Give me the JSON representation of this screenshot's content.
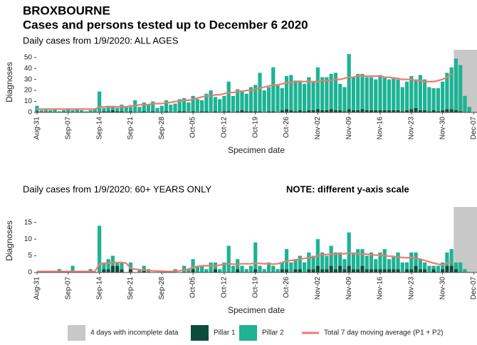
{
  "header": {
    "title": "BROXBOURNE",
    "subtitle": "Cases and persons tested up to December  6 2020"
  },
  "chart_data": [
    {
      "type": "bar",
      "title": "Daily cases from 1/9/2020: ALL AGES",
      "xlabel": "Specimen date",
      "ylabel": "Diagnoses",
      "stacked": true,
      "incomplete_days": 4,
      "shade_label": "4 days with incomplete data",
      "shade_color": "#c8c8c8",
      "categories": [
        "Aug-31",
        null,
        null,
        null,
        null,
        null,
        null,
        "Sep-07",
        null,
        null,
        null,
        null,
        null,
        null,
        "Sep-14",
        null,
        null,
        null,
        null,
        null,
        null,
        "Sep-21",
        null,
        null,
        null,
        null,
        null,
        null,
        "Sep-28",
        null,
        null,
        null,
        null,
        null,
        null,
        "Oct-05",
        null,
        null,
        null,
        null,
        null,
        null,
        "Oct-12",
        null,
        null,
        null,
        null,
        null,
        null,
        "Oct-19",
        null,
        null,
        null,
        null,
        null,
        null,
        "Oct-26",
        null,
        null,
        null,
        null,
        null,
        null,
        "Nov-02",
        null,
        null,
        null,
        null,
        null,
        null,
        "Nov-09",
        null,
        null,
        null,
        null,
        null,
        null,
        "Nov-16",
        null,
        null,
        null,
        null,
        null,
        null,
        "Nov-23",
        null,
        null,
        null,
        null,
        null,
        null,
        "Nov-30",
        null,
        null,
        null,
        null,
        null,
        null,
        "Dec-07"
      ],
      "ylim": [
        0,
        55
      ],
      "yticks": [
        0,
        10,
        20,
        30,
        40,
        50
      ],
      "series": [
        {
          "name": "Pillar 1",
          "type": "bar",
          "color": "#0b4d3a",
          "values": [
            1,
            0,
            0,
            0,
            0,
            0,
            0,
            0,
            0,
            0,
            0,
            0,
            0,
            0,
            0,
            1,
            1,
            2,
            1,
            1,
            0,
            1,
            0,
            0,
            1,
            0,
            1,
            0,
            0,
            1,
            0,
            0,
            1,
            1,
            0,
            1,
            0,
            1,
            1,
            0,
            1,
            0,
            1,
            1,
            0,
            1,
            2,
            1,
            1,
            1,
            1,
            0,
            1,
            1,
            0,
            2,
            3,
            2,
            1,
            2,
            1,
            2,
            2,
            3,
            2,
            2,
            3,
            2,
            2,
            1,
            3,
            2,
            2,
            3,
            2,
            2,
            2,
            2,
            2,
            2,
            2,
            2,
            1,
            2,
            3,
            4,
            2,
            2,
            1,
            2,
            1,
            2,
            3,
            3,
            2,
            1,
            0,
            0,
            null
          ]
        },
        {
          "name": "Pillar 2",
          "type": "bar",
          "color": "#1db394",
          "values": [
            5,
            2,
            3,
            2,
            3,
            1,
            2,
            3,
            2,
            3,
            2,
            1,
            2,
            3,
            19,
            3,
            5,
            4,
            3,
            6,
            5,
            4,
            11,
            5,
            8,
            7,
            9,
            4,
            6,
            10,
            7,
            8,
            11,
            12,
            9,
            14,
            12,
            10,
            16,
            20,
            13,
            12,
            14,
            27,
            15,
            20,
            18,
            16,
            22,
            24,
            35,
            20,
            22,
            40,
            25,
            20,
            30,
            32,
            28,
            27,
            25,
            30,
            26,
            38,
            30,
            30,
            32,
            34,
            24,
            22,
            50,
            30,
            33,
            32,
            30,
            30,
            28,
            32,
            30,
            28,
            30,
            28,
            22,
            26,
            30,
            26,
            32,
            28,
            22,
            20,
            21,
            26,
            33,
            38,
            47,
            42,
            15,
            5,
            null
          ]
        },
        {
          "name": "Total 7 day moving average (P1 + P2)",
          "type": "line",
          "color": "#f07a70",
          "values": [
            3,
            3,
            3,
            3,
            3,
            3,
            3,
            3,
            3,
            3,
            3,
            3,
            3,
            3,
            5,
            5,
            5,
            5,
            5,
            5,
            5,
            6,
            6,
            7,
            7,
            7,
            8,
            8,
            8,
            9,
            9,
            10,
            10,
            11,
            11,
            12,
            13,
            14,
            15,
            15,
            16,
            16,
            17,
            18,
            18,
            19,
            19,
            20,
            20,
            21,
            22,
            23,
            24,
            25,
            25,
            26,
            27,
            27,
            28,
            28,
            28,
            28,
            28,
            28,
            29,
            29,
            29,
            30,
            30,
            31,
            32,
            32,
            33,
            33,
            33,
            33,
            33,
            33,
            32,
            32,
            31,
            31,
            30,
            30,
            30,
            29,
            29,
            28,
            28,
            28,
            29,
            30,
            32,
            35,
            null,
            null,
            null,
            null,
            null
          ]
        }
      ]
    },
    {
      "type": "bar",
      "title": "Daily cases from 1/9/2020: 60+ YEARS ONLY",
      "note": "NOTE: different y-axis scale",
      "xlabel": "Specimen date",
      "ylabel": "Diagnoses",
      "stacked": true,
      "incomplete_days": 4,
      "shade_color": "#c8c8c8",
      "categories": [
        "Aug-31",
        null,
        null,
        null,
        null,
        null,
        null,
        "Sep-07",
        null,
        null,
        null,
        null,
        null,
        null,
        "Sep-14",
        null,
        null,
        null,
        null,
        null,
        null,
        "Sep-21",
        null,
        null,
        null,
        null,
        null,
        null,
        "Sep-28",
        null,
        null,
        null,
        null,
        null,
        null,
        "Oct-05",
        null,
        null,
        null,
        null,
        null,
        null,
        "Oct-12",
        null,
        null,
        null,
        null,
        null,
        null,
        "Oct-19",
        null,
        null,
        null,
        null,
        null,
        null,
        "Oct-26",
        null,
        null,
        null,
        null,
        null,
        null,
        "Nov-02",
        null,
        null,
        null,
        null,
        null,
        null,
        "Nov-09",
        null,
        null,
        null,
        null,
        null,
        null,
        "Nov-16",
        null,
        null,
        null,
        null,
        null,
        null,
        "Nov-23",
        null,
        null,
        null,
        null,
        null,
        null,
        "Nov-30",
        null,
        null,
        null,
        null,
        null,
        null,
        "Dec-07"
      ],
      "ylim": [
        0,
        19
      ],
      "yticks": [
        0,
        5,
        10,
        15
      ],
      "series": [
        {
          "type": "bar",
          "color": "#0b4d3a",
          "values": [
            0,
            0,
            0,
            0,
            0,
            0,
            0,
            0,
            0,
            0,
            0,
            0,
            0,
            0,
            0,
            1,
            1,
            2,
            2,
            1,
            0,
            1,
            0,
            0,
            1,
            0,
            0,
            0,
            0,
            0,
            0,
            0,
            0,
            0,
            0,
            1,
            0,
            0,
            0,
            0,
            1,
            0,
            0,
            0,
            0,
            1,
            0,
            0,
            0,
            1,
            0,
            0,
            0,
            0,
            0,
            1,
            1,
            0,
            1,
            1,
            0,
            1,
            1,
            2,
            1,
            1,
            2,
            1,
            2,
            1,
            2,
            1,
            1,
            2,
            1,
            1,
            1,
            1,
            1,
            1,
            1,
            1,
            0,
            1,
            1,
            2,
            1,
            1,
            0,
            1,
            0,
            1,
            2,
            2,
            1,
            0,
            0,
            0,
            null
          ]
        },
        {
          "type": "bar",
          "color": "#1db394",
          "values": [
            0,
            0,
            0,
            0,
            0,
            1,
            0,
            0,
            2,
            0,
            0,
            0,
            1,
            0,
            14,
            2,
            3,
            3,
            1,
            2,
            0,
            2,
            0,
            1,
            1,
            1,
            0,
            0,
            0,
            0,
            0,
            1,
            0,
            2,
            1,
            3,
            2,
            2,
            1,
            3,
            2,
            1,
            3,
            8,
            2,
            3,
            2,
            1,
            2,
            8,
            2,
            1,
            3,
            2,
            1,
            2,
            6,
            3,
            3,
            4,
            3,
            5,
            4,
            8,
            5,
            4,
            6,
            5,
            4,
            3,
            10,
            5,
            6,
            5,
            4,
            5,
            3,
            5,
            6,
            3,
            4,
            5,
            3,
            2,
            5,
            4,
            3,
            2,
            2,
            1,
            2,
            2,
            4,
            5,
            2,
            3,
            1,
            0,
            null
          ]
        },
        {
          "type": "line",
          "color": "#f07a70",
          "values": [
            0.3,
            0.3,
            0.3,
            0.3,
            0.3,
            0.3,
            0.3,
            0.3,
            0.3,
            0.3,
            0.3,
            0.3,
            0.3,
            0.3,
            2.5,
            2.7,
            2.8,
            3,
            3,
            3,
            2.8,
            1.2,
            1,
            0.8,
            0.7,
            0.6,
            0.5,
            0.4,
            0.4,
            0.3,
            0.3,
            0.4,
            0.5,
            0.8,
            1,
            1.5,
            1.8,
            2,
            2,
            2,
            2,
            2.2,
            2.5,
            2.6,
            2.5,
            2.5,
            2.6,
            2.6,
            2.6,
            2.8,
            2.7,
            2.6,
            2.6,
            2.5,
            2.6,
            3,
            3.4,
            3.6,
            3.8,
            4,
            4.2,
            4.4,
            4.6,
            5,
            5.3,
            5.4,
            5.5,
            5.5,
            5.6,
            5.6,
            5.8,
            5.6,
            5.6,
            5.5,
            5.5,
            5.3,
            5.2,
            5.2,
            5,
            4.9,
            4.8,
            4.6,
            4.5,
            4.4,
            4.5,
            4.3,
            4,
            3.6,
            3.2,
            2.8,
            2.5,
            2.3,
            2.8,
            3.2,
            null,
            null,
            null,
            null,
            null
          ]
        }
      ]
    }
  ]
}
